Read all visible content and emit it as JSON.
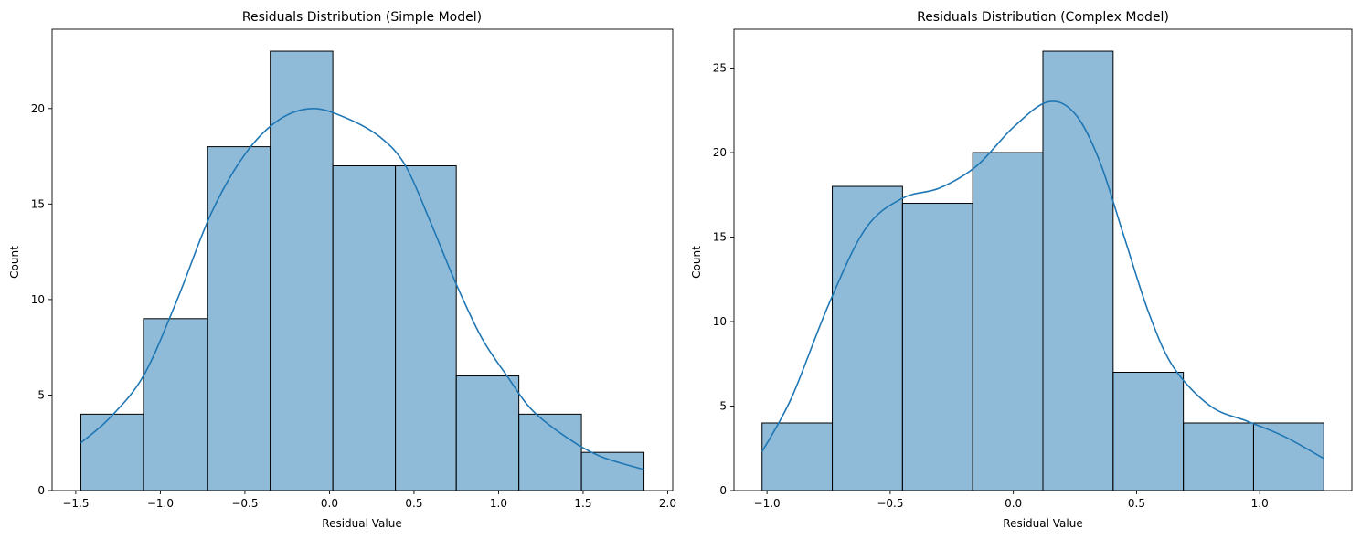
{
  "chart_data": [
    {
      "type": "bar",
      "subtype": "histogram-with-kde",
      "title": "Residuals Distribution (Simple Model)",
      "xlabel": "Residual Value",
      "ylabel": "Count",
      "bins": [
        {
          "start": -1.47,
          "end": -1.1,
          "count": 4
        },
        {
          "start": -1.1,
          "end": -0.72,
          "count": 9
        },
        {
          "start": -0.72,
          "end": -0.35,
          "count": 18
        },
        {
          "start": -0.35,
          "end": 0.02,
          "count": 23
        },
        {
          "start": 0.02,
          "end": 0.39,
          "count": 17
        },
        {
          "start": 0.39,
          "end": 0.75,
          "count": 17
        },
        {
          "start": 0.75,
          "end": 1.12,
          "count": 6
        },
        {
          "start": 1.12,
          "end": 1.49,
          "count": 4
        },
        {
          "start": 1.49,
          "end": 1.86,
          "count": 2
        }
      ],
      "kde": {
        "x": [
          -1.47,
          -1.3,
          -1.1,
          -0.9,
          -0.7,
          -0.5,
          -0.3,
          -0.1,
          0.1,
          0.3,
          0.45,
          0.6,
          0.75,
          0.9,
          1.05,
          1.2,
          1.4,
          1.6,
          1.86
        ],
        "y": [
          2.5,
          3.8,
          6.0,
          10.0,
          14.5,
          17.6,
          19.4,
          20.0,
          19.5,
          18.5,
          17.0,
          14.0,
          10.8,
          8.0,
          6.0,
          4.2,
          2.8,
          1.8,
          1.1
        ]
      },
      "xticks": [
        -1.5,
        -1.0,
        -0.5,
        0.0,
        0.5,
        1.0,
        1.5,
        2.0
      ],
      "xtick_labels": [
        "−1.5",
        "−1.0",
        "−0.5",
        "0.0",
        "0.5",
        "1.0",
        "1.5",
        "2.0"
      ],
      "yticks": [
        0,
        5,
        10,
        15,
        20
      ],
      "xlim": [
        -1.64,
        2.03
      ],
      "ylim": [
        0,
        24.15
      ],
      "grid": false,
      "color": "#1f77b4"
    },
    {
      "type": "bar",
      "subtype": "histogram-with-kde",
      "title": "Residuals Distribution (Complex Model)",
      "xlabel": "Residual Value",
      "ylabel": "Count",
      "bins": [
        {
          "start": -1.02,
          "end": -0.735,
          "count": 4
        },
        {
          "start": -0.735,
          "end": -0.45,
          "count": 18
        },
        {
          "start": -0.45,
          "end": -0.165,
          "count": 17
        },
        {
          "start": -0.165,
          "end": 0.12,
          "count": 20
        },
        {
          "start": 0.12,
          "end": 0.405,
          "count": 26
        },
        {
          "start": 0.405,
          "end": 0.69,
          "count": 7
        },
        {
          "start": 0.69,
          "end": 0.975,
          "count": 4
        },
        {
          "start": 0.975,
          "end": 1.26,
          "count": 4
        }
      ],
      "kde": {
        "x": [
          -1.02,
          -0.9,
          -0.75,
          -0.6,
          -0.45,
          -0.3,
          -0.15,
          0.0,
          0.14,
          0.25,
          0.35,
          0.45,
          0.55,
          0.65,
          0.8,
          0.95,
          1.1,
          1.26
        ],
        "y": [
          2.3,
          5.5,
          11.0,
          15.5,
          17.3,
          17.9,
          19.2,
          21.5,
          23.0,
          22.3,
          19.5,
          15.0,
          10.5,
          7.3,
          5.0,
          4.1,
          3.2,
          1.9
        ]
      },
      "xticks": [
        -1.0,
        -0.5,
        0.0,
        0.5,
        1.0
      ],
      "xtick_labels": [
        "−1.0",
        "−0.5",
        "0.0",
        "0.5",
        "1.0"
      ],
      "yticks": [
        0,
        5,
        10,
        15,
        20,
        25
      ],
      "xlim": [
        -1.134,
        1.374
      ],
      "ylim": [
        0,
        27.3
      ],
      "grid": false,
      "color": "#1f77b4"
    }
  ]
}
